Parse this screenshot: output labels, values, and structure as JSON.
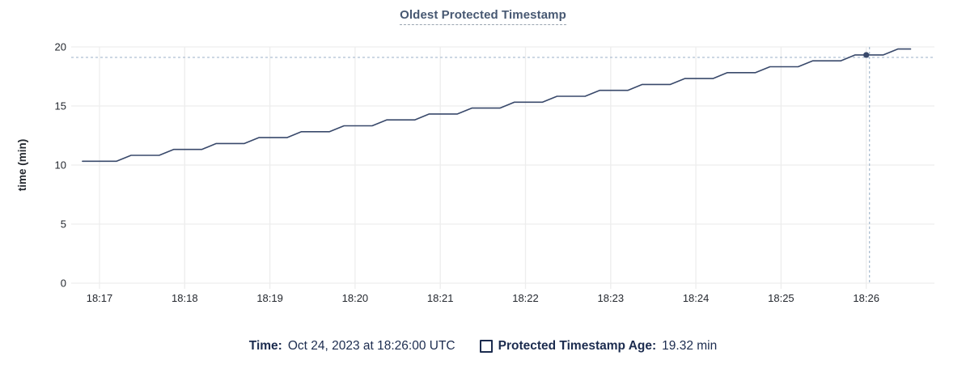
{
  "title": "Oldest Protected Timestamp",
  "legend": {
    "time_label": "Time:",
    "time_value": "Oct 24, 2023 at 18:26:00 UTC",
    "series_label": "Protected Timestamp Age:",
    "series_value": "19.32 min"
  },
  "colors": {
    "title": "#475872",
    "series_line": "#39496b",
    "hover_dot": "#39496b",
    "crosshair": "#a6b9ce",
    "grid": "#ededed",
    "tick_text": "#24282f",
    "legend_text": "#1c2c4f",
    "background": "#ffffff"
  },
  "chart_data": {
    "type": "line",
    "title": "Oldest Protected Timestamp",
    "xlabel": "",
    "ylabel": "time (min)",
    "ylim": [
      0,
      20
    ],
    "y_ticks": [
      0,
      5,
      10,
      15,
      20
    ],
    "x_ticks": [
      "18:17",
      "18:18",
      "18:19",
      "18:20",
      "18:21",
      "18:22",
      "18:23",
      "18:24",
      "18:25",
      "18:26"
    ],
    "x_tick_interval": "1 minute",
    "grid": true,
    "legend_position": "bottom",
    "series": [
      {
        "name": "Protected Timestamp Age",
        "unit": "min",
        "points": [
          [
            -0.2,
            10.32
          ],
          [
            0.2,
            10.32
          ],
          [
            0.37,
            10.82
          ],
          [
            0.7,
            10.82
          ],
          [
            0.87,
            11.32
          ],
          [
            1.2,
            11.32
          ],
          [
            1.37,
            11.82
          ],
          [
            1.7,
            11.82
          ],
          [
            1.87,
            12.32
          ],
          [
            2.2,
            12.32
          ],
          [
            2.37,
            12.82
          ],
          [
            2.7,
            12.82
          ],
          [
            2.87,
            13.32
          ],
          [
            3.2,
            13.32
          ],
          [
            3.37,
            13.82
          ],
          [
            3.7,
            13.82
          ],
          [
            3.87,
            14.32
          ],
          [
            4.2,
            14.32
          ],
          [
            4.37,
            14.82
          ],
          [
            4.7,
            14.82
          ],
          [
            4.87,
            15.32
          ],
          [
            5.2,
            15.32
          ],
          [
            5.37,
            15.82
          ],
          [
            5.7,
            15.82
          ],
          [
            5.87,
            16.32
          ],
          [
            6.2,
            16.32
          ],
          [
            6.37,
            16.82
          ],
          [
            6.7,
            16.82
          ],
          [
            6.87,
            17.32
          ],
          [
            7.2,
            17.32
          ],
          [
            7.37,
            17.82
          ],
          [
            7.7,
            17.82
          ],
          [
            7.87,
            18.32
          ],
          [
            8.2,
            18.32
          ],
          [
            8.37,
            18.82
          ],
          [
            8.7,
            18.82
          ],
          [
            8.87,
            19.32
          ],
          [
            9.2,
            19.32
          ],
          [
            9.37,
            19.82
          ],
          [
            9.52,
            19.82
          ]
        ]
      }
    ],
    "hover": {
      "x_minutes_after_1817": 9.0,
      "time": "Oct 24, 2023 at 18:26:00 UTC",
      "value": 19.32,
      "unit": "min"
    }
  }
}
